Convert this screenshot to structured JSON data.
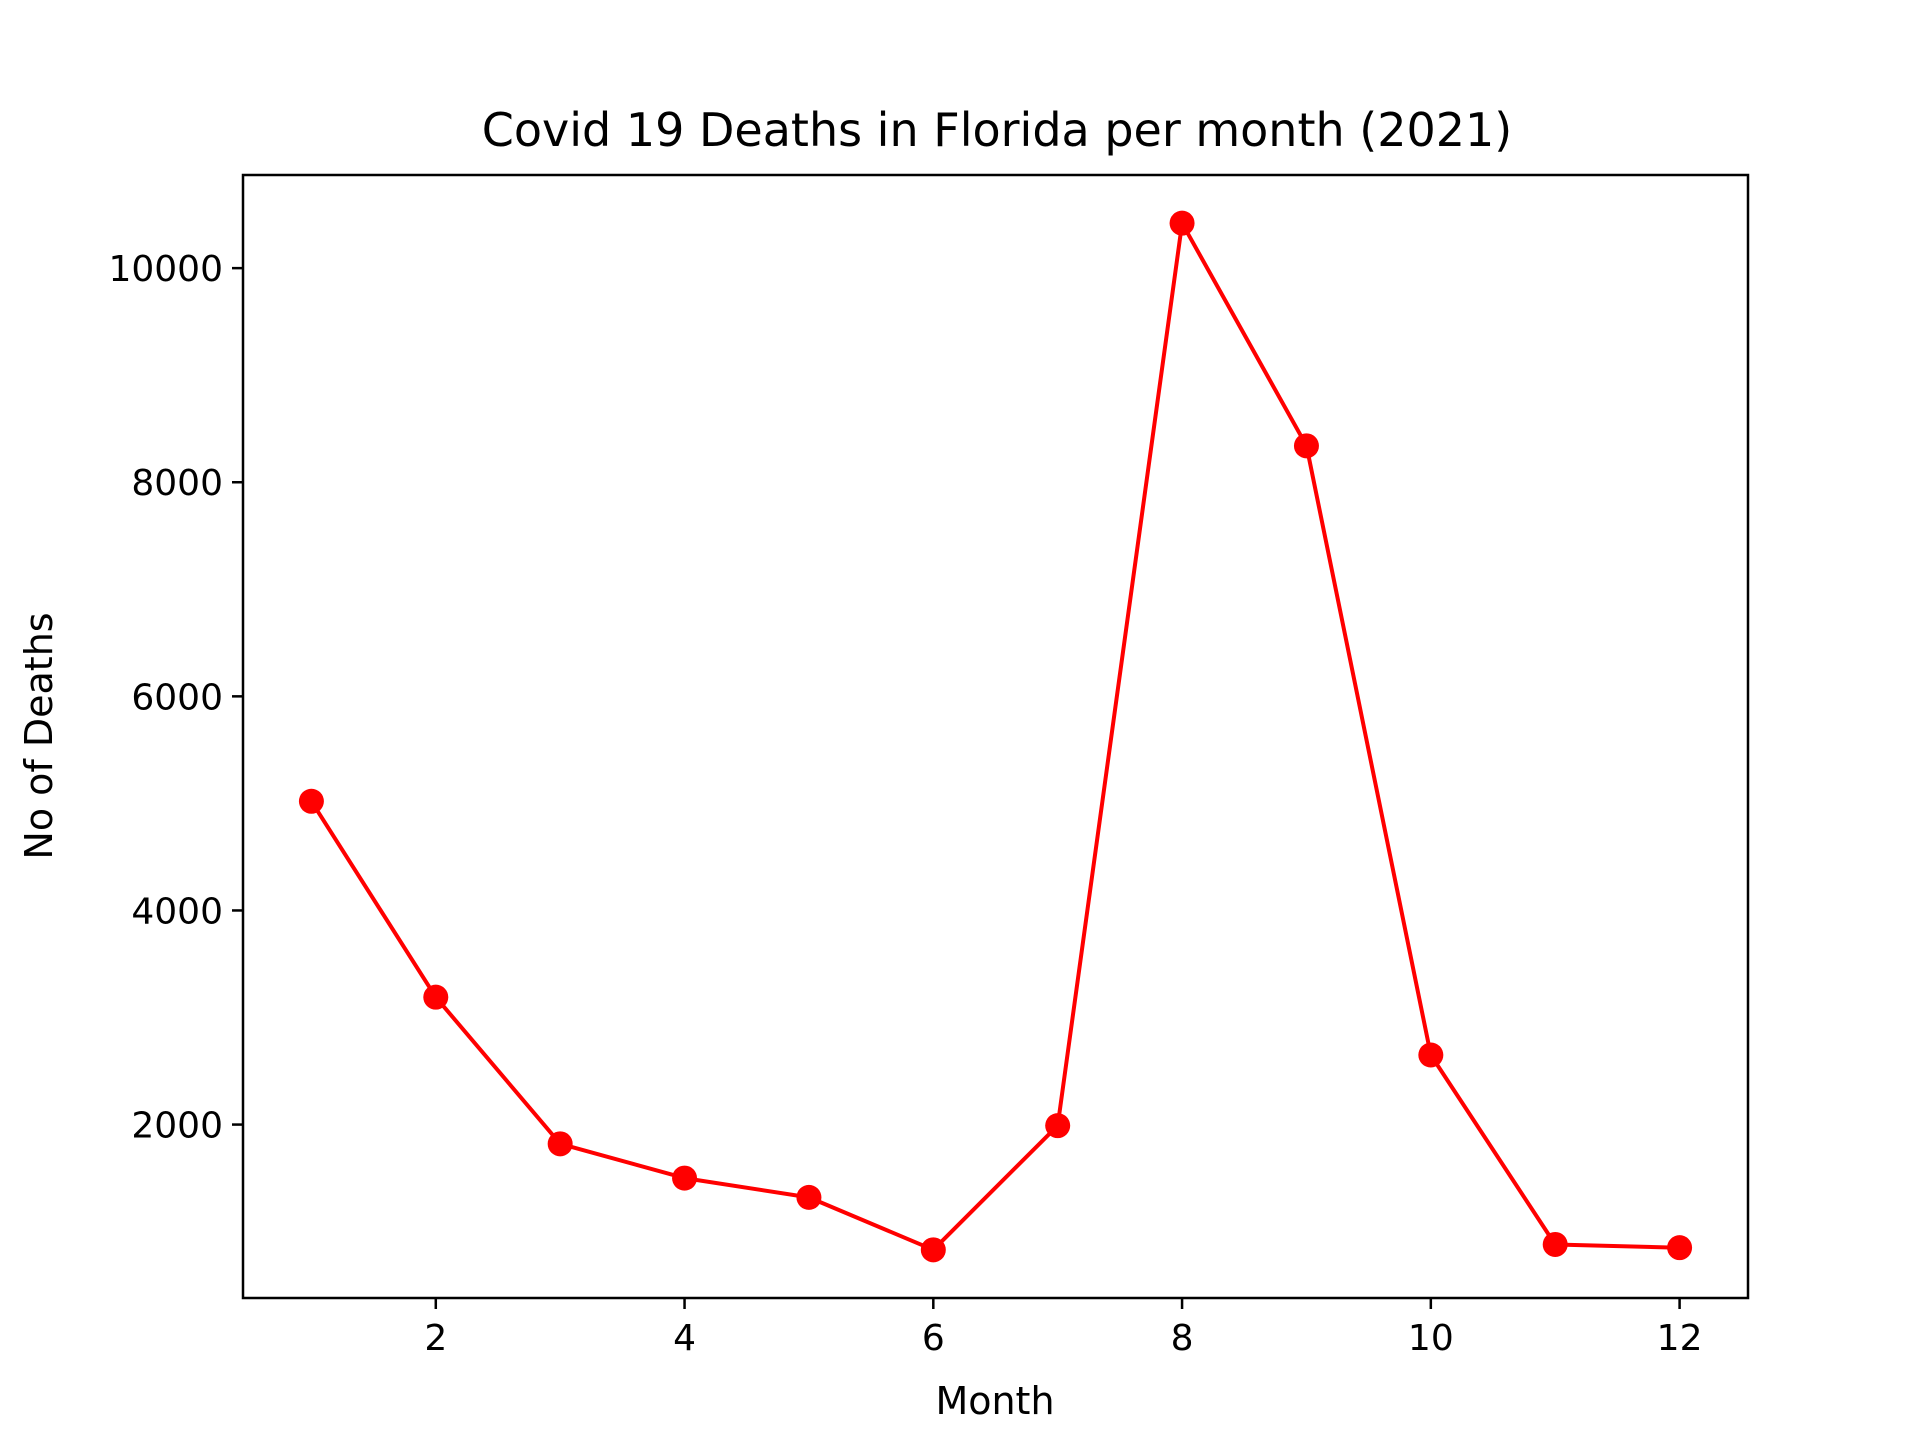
{
  "chart_data": {
    "type": "line",
    "title": "Covid 19 Deaths in Florida per month (2021)",
    "xlabel": "Month",
    "ylabel": "No of Deaths",
    "xlim": [
      0.45,
      12.55
    ],
    "ylim": [
      380,
      10870
    ],
    "xticks": [
      2,
      4,
      6,
      8,
      10,
      12
    ],
    "yticks": [
      2000,
      4000,
      6000,
      8000,
      10000
    ],
    "grid": false,
    "legend": "none",
    "series": [
      {
        "color": "#ff0000",
        "marker": "circle",
        "x": [
          1,
          2,
          3,
          4,
          5,
          6,
          7,
          8,
          9,
          10,
          11,
          12
        ],
        "y": [
          5020,
          3190,
          1820,
          1500,
          1320,
          830,
          1990,
          10420,
          8340,
          2650,
          880,
          850
        ]
      }
    ]
  }
}
